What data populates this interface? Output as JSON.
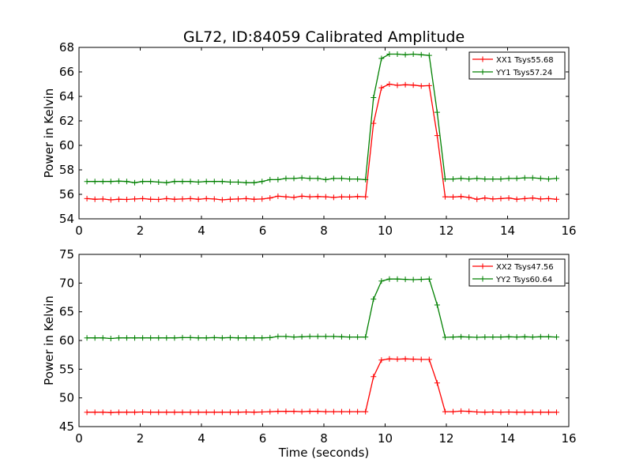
{
  "figure": {
    "title": "GL72, ID:84059 Calibrated Amplitude"
  },
  "chart_data": [
    {
      "type": "line",
      "title": "GL72, ID:84059 Calibrated Amplitude",
      "xlabel": "",
      "ylabel": "Power in Kelvin",
      "xlim": [
        0,
        16
      ],
      "ylim": [
        54,
        68
      ],
      "xticks": [
        0,
        2,
        4,
        6,
        8,
        10,
        12,
        14,
        16
      ],
      "yticks": [
        54,
        56,
        58,
        60,
        62,
        64,
        66,
        68
      ],
      "legend": "top-right",
      "grid": false,
      "x": [
        0.26,
        0.52,
        0.78,
        1.04,
        1.3,
        1.56,
        1.82,
        2.08,
        2.34,
        2.6,
        2.86,
        3.12,
        3.38,
        3.64,
        3.9,
        4.16,
        4.42,
        4.68,
        4.94,
        5.2,
        5.46,
        5.72,
        5.98,
        6.24,
        6.5,
        6.76,
        7.02,
        7.28,
        7.54,
        7.8,
        8.06,
        8.32,
        8.58,
        8.84,
        9.1,
        9.36,
        9.62,
        9.88,
        10.14,
        10.4,
        10.66,
        10.92,
        11.18,
        11.44,
        11.7,
        11.96,
        12.22,
        12.48,
        12.74,
        13.0,
        13.26,
        13.52,
        13.78,
        14.04,
        14.3,
        14.56,
        14.82,
        15.08,
        15.34,
        15.6
      ],
      "series": [
        {
          "name": "XX1 Tsys55.68",
          "color": "#ff0000",
          "values": [
            55.65,
            55.6,
            55.62,
            55.55,
            55.6,
            55.58,
            55.62,
            55.65,
            55.6,
            55.58,
            55.65,
            55.6,
            55.62,
            55.65,
            55.6,
            55.65,
            55.62,
            55.55,
            55.6,
            55.62,
            55.65,
            55.6,
            55.62,
            55.7,
            55.85,
            55.8,
            55.75,
            55.85,
            55.8,
            55.82,
            55.8,
            55.75,
            55.8,
            55.78,
            55.82,
            55.8,
            61.8,
            64.7,
            65.0,
            64.9,
            64.95,
            64.92,
            64.85,
            64.88,
            60.8,
            55.8,
            55.78,
            55.82,
            55.75,
            55.6,
            55.7,
            55.62,
            55.65,
            55.7,
            55.6,
            55.65,
            55.7,
            55.62,
            55.65,
            55.6
          ]
        },
        {
          "name": "YY1 Tsys57.24",
          "color": "#008000",
          "values": [
            57.05,
            57.05,
            57.05,
            57.05,
            57.08,
            57.05,
            56.95,
            57.05,
            57.05,
            57.0,
            56.95,
            57.05,
            57.05,
            57.05,
            57.0,
            57.05,
            57.05,
            57.05,
            57.0,
            57.0,
            56.95,
            56.95,
            57.05,
            57.2,
            57.2,
            57.3,
            57.3,
            57.35,
            57.3,
            57.3,
            57.2,
            57.3,
            57.3,
            57.25,
            57.25,
            57.2,
            63.9,
            67.1,
            67.45,
            67.45,
            67.4,
            67.45,
            67.4,
            67.35,
            62.7,
            57.25,
            57.25,
            57.3,
            57.25,
            57.3,
            57.25,
            57.25,
            57.25,
            57.3,
            57.3,
            57.35,
            57.35,
            57.3,
            57.25,
            57.3
          ]
        }
      ]
    },
    {
      "type": "line",
      "title": "",
      "xlabel": "Time (seconds)",
      "ylabel": "Power in Kelvin",
      "xlim": [
        0,
        16
      ],
      "ylim": [
        45,
        75
      ],
      "xticks": [
        0,
        2,
        4,
        6,
        8,
        10,
        12,
        14,
        16
      ],
      "yticks": [
        45,
        50,
        55,
        60,
        65,
        70,
        75
      ],
      "legend": "top-right",
      "grid": false,
      "x": [
        0.26,
        0.52,
        0.78,
        1.04,
        1.3,
        1.56,
        1.82,
        2.08,
        2.34,
        2.6,
        2.86,
        3.12,
        3.38,
        3.64,
        3.9,
        4.16,
        4.42,
        4.68,
        4.94,
        5.2,
        5.46,
        5.72,
        5.98,
        6.24,
        6.5,
        6.76,
        7.02,
        7.28,
        7.54,
        7.8,
        8.06,
        8.32,
        8.58,
        8.84,
        9.1,
        9.36,
        9.62,
        9.88,
        10.14,
        10.4,
        10.66,
        10.92,
        11.18,
        11.44,
        11.7,
        11.96,
        12.22,
        12.48,
        12.74,
        13.0,
        13.26,
        13.52,
        13.78,
        14.04,
        14.3,
        14.56,
        14.82,
        15.08,
        15.34,
        15.6
      ],
      "series": [
        {
          "name": "XX2 Tsys47.56",
          "color": "#ff0000",
          "values": [
            47.5,
            47.5,
            47.5,
            47.45,
            47.5,
            47.5,
            47.5,
            47.55,
            47.5,
            47.5,
            47.5,
            47.5,
            47.5,
            47.5,
            47.5,
            47.5,
            47.5,
            47.5,
            47.5,
            47.5,
            47.55,
            47.5,
            47.55,
            47.6,
            47.65,
            47.65,
            47.65,
            47.6,
            47.65,
            47.65,
            47.6,
            47.6,
            47.6,
            47.6,
            47.6,
            47.6,
            53.7,
            56.6,
            56.8,
            56.75,
            56.8,
            56.75,
            56.7,
            56.7,
            52.6,
            47.6,
            47.6,
            47.7,
            47.65,
            47.55,
            47.5,
            47.55,
            47.5,
            47.55,
            47.5,
            47.5,
            47.5,
            47.5,
            47.5,
            47.5
          ]
        },
        {
          "name": "YY2 Tsys60.64",
          "color": "#008000",
          "values": [
            60.45,
            60.45,
            60.45,
            60.35,
            60.45,
            60.45,
            60.45,
            60.45,
            60.45,
            60.45,
            60.45,
            60.45,
            60.5,
            60.5,
            60.45,
            60.45,
            60.5,
            60.45,
            60.5,
            60.45,
            60.45,
            60.45,
            60.45,
            60.5,
            60.7,
            60.7,
            60.6,
            60.65,
            60.7,
            60.7,
            60.7,
            60.7,
            60.65,
            60.6,
            60.6,
            60.6,
            67.2,
            70.35,
            70.7,
            70.7,
            70.65,
            70.6,
            70.65,
            70.7,
            66.2,
            60.55,
            60.6,
            60.65,
            60.6,
            60.55,
            60.6,
            60.6,
            60.6,
            60.65,
            60.6,
            60.65,
            60.6,
            60.65,
            60.65,
            60.6
          ]
        }
      ]
    }
  ]
}
